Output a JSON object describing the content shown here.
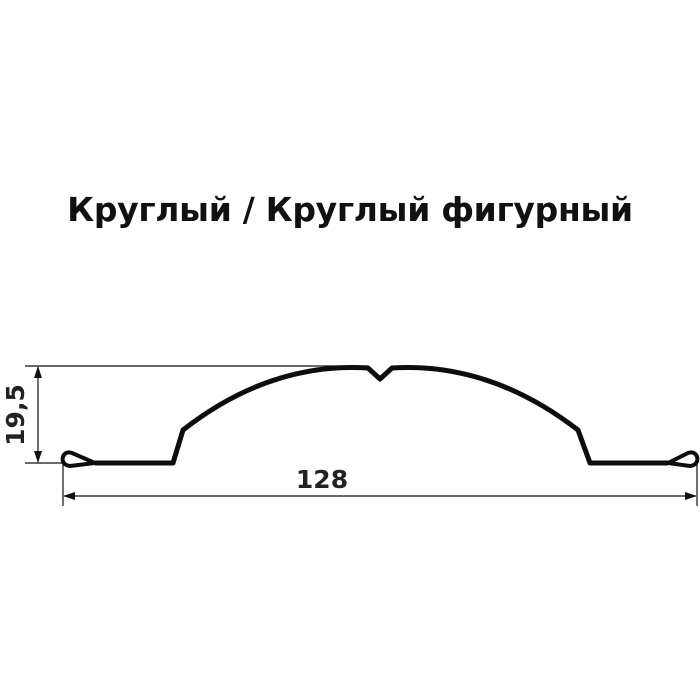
{
  "title": "Круглый / Круглый фигурный",
  "dimensions": {
    "height": "19,5",
    "width": "128"
  }
}
